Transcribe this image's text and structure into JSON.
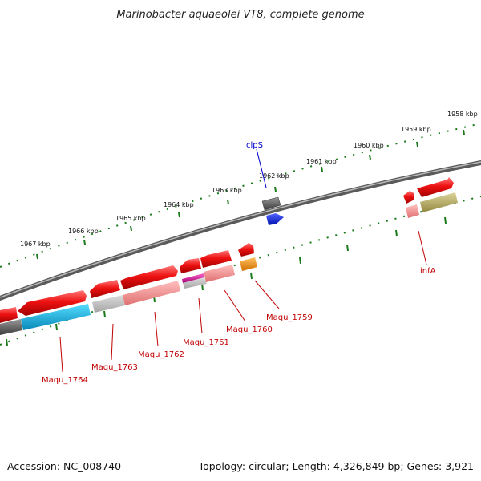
{
  "title": "Marinobacter aquaeolei VT8, complete genome",
  "footer": {
    "accession": "Accession: NC_008740",
    "summary": "Topology: circular; Length: 4,326,849 bp; Genes: 3,921"
  },
  "scale_labels": [
    "1958 kbp",
    "1959 kbp",
    "1960 kbp",
    "1961 kbp",
    "1962 kbp",
    "1963 kbp",
    "1964 kbp",
    "1965 kbp",
    "1966 kbp",
    "1967 kbp"
  ],
  "gene_labels": {
    "clpS": "clpS",
    "infA": "infA",
    "maqu_1759": "Maqu_1759",
    "maqu_1760": "Maqu_1760",
    "maqu_1761": "Maqu_1761",
    "maqu_1762": "Maqu_1762",
    "maqu_1763": "Maqu_1763",
    "maqu_1764": "Maqu_1764"
  },
  "colors": {
    "gene_red": "#ee1111",
    "backbone": "#808080",
    "tick_green": "#1a7a1a",
    "cds_blue": "#0a1ff0",
    "cyan": "#11aadd",
    "olive": "#b8ad66",
    "orange": "#f08a00",
    "pink": "#ef8080",
    "magenta": "#d01aa0",
    "gray": "#5a5a5a",
    "label_red": "#c00000",
    "label_blue": "#0000cc"
  }
}
